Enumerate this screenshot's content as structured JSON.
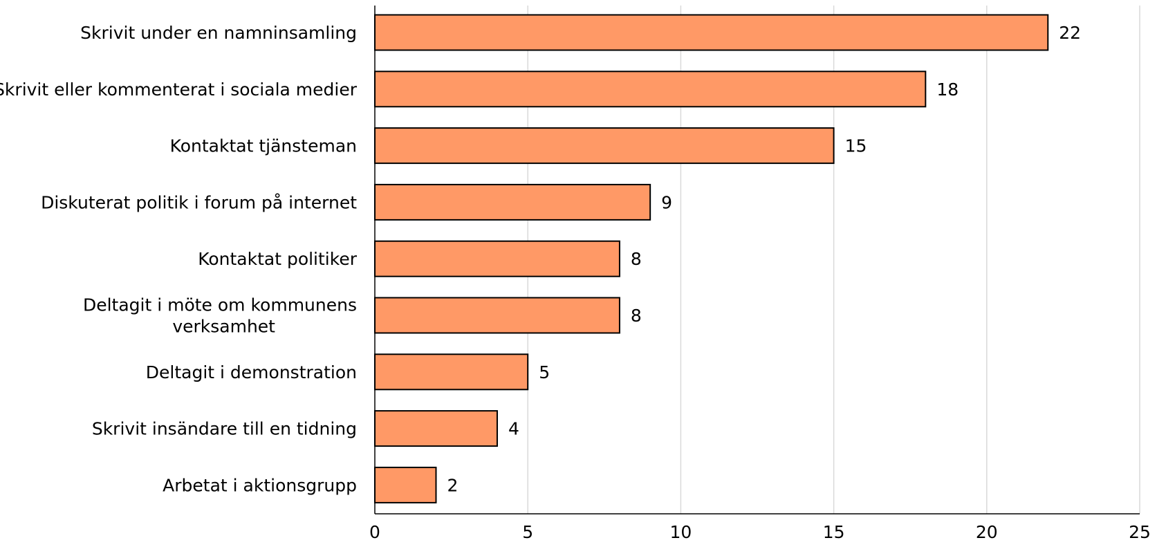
{
  "chart_data": {
    "type": "bar",
    "orientation": "horizontal",
    "categories": [
      "Skrivit under en namninsamling",
      "Skrivit eller kommenterat i sociala medier",
      "Kontaktat tjänsteman",
      "Diskuterat politik i forum på internet",
      "Kontaktat politiker",
      "Deltagit i möte om kommunens verksamhet",
      "Deltagit i demonstration",
      "Skrivit insändare till en tidning",
      "Arbetat i aktionsgrupp"
    ],
    "category_label_lines": [
      [
        "Skrivit under en namninsamling"
      ],
      [
        "Skrivit eller kommenterat i sociala medier"
      ],
      [
        "Kontaktat tjänsteman"
      ],
      [
        "Diskuterat politik i forum på internet"
      ],
      [
        "Kontaktat politiker"
      ],
      [
        "Deltagit i möte om kommunens",
        "verksamhet"
      ],
      [
        "Deltagit i demonstration"
      ],
      [
        "Skrivit insändare till en tidning"
      ],
      [
        "Arbetat i aktionsgrupp"
      ]
    ],
    "values": [
      22,
      18,
      15,
      9,
      8,
      8,
      5,
      4,
      2
    ],
    "data_labels": [
      "22",
      "18",
      "15",
      "9",
      "8",
      "8",
      "5",
      "4",
      "2"
    ],
    "xlim": [
      0,
      25
    ],
    "x_ticks": [
      0,
      5,
      10,
      15,
      20,
      25
    ],
    "x_tick_labels": [
      "0",
      "5",
      "10",
      "15",
      "20",
      "25"
    ],
    "title": "",
    "xlabel": "",
    "ylabel": "",
    "grid": "vertical",
    "legend": "none",
    "bar_color": "#FF9966",
    "bar_edge_color": "#000000",
    "grid_color": "#D9D9D9",
    "axis_color": "#000000"
  }
}
